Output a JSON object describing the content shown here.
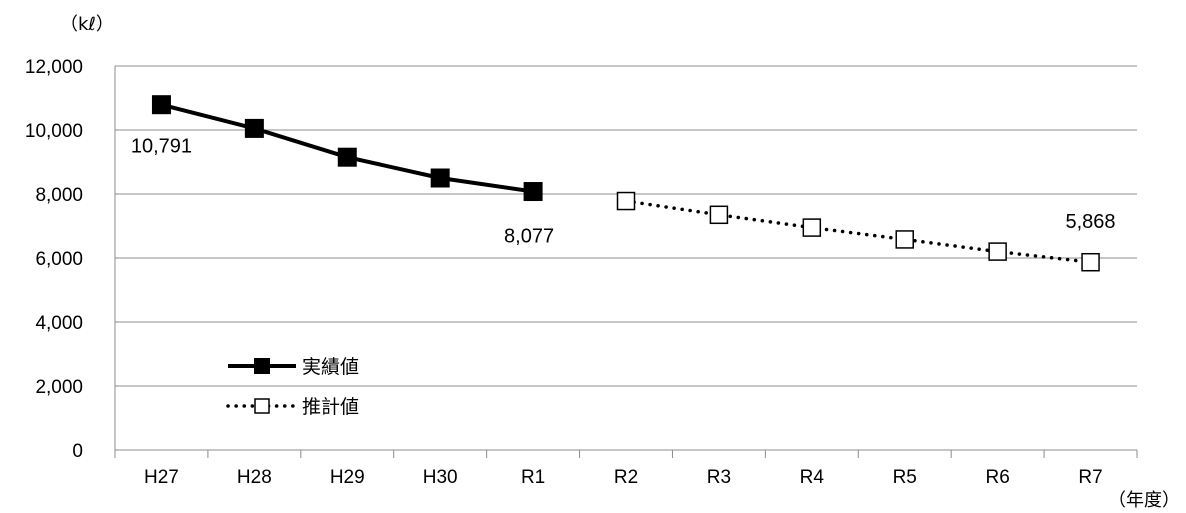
{
  "chart_data": {
    "type": "line",
    "categories": [
      "H27",
      "H28",
      "H29",
      "H30",
      "R1",
      "R2",
      "R3",
      "R4",
      "R5",
      "R6",
      "R7"
    ],
    "y_unit_label": "（kℓ）",
    "x_unit_label": "（年度）",
    "ylim": [
      0,
      12000
    ],
    "y_ticks": [
      0,
      2000,
      4000,
      6000,
      8000,
      10000,
      12000
    ],
    "y_tick_labels": [
      "0",
      "2,000",
      "4,000",
      "6,000",
      "8,000",
      "10,000",
      "12,000"
    ],
    "grid": true,
    "legend_position": "bottom-left",
    "series": [
      {
        "name": "実績値",
        "style": "solid",
        "marker": "filled-square",
        "color": "#000000",
        "values": [
          10791,
          10050,
          9150,
          8500,
          8077,
          null,
          null,
          null,
          null,
          null,
          null
        ]
      },
      {
        "name": "推計値",
        "style": "dotted",
        "marker": "hollow-square",
        "color": "#000000",
        "values": [
          null,
          null,
          null,
          null,
          null,
          7780,
          7350,
          6950,
          6580,
          6200,
          5868
        ]
      }
    ],
    "data_labels": [
      {
        "category": "H27",
        "text": "10,791",
        "position": "below-left"
      },
      {
        "category": "R1",
        "text": "8,077",
        "position": "below"
      },
      {
        "category": "R7",
        "text": "5,868",
        "position": "above"
      }
    ]
  }
}
